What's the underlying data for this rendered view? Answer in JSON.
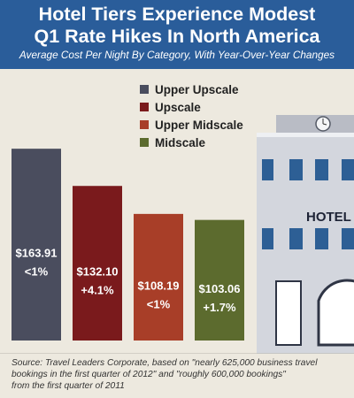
{
  "header": {
    "title_line1": "Hotel Tiers Experience Modest",
    "title_line2": "Q1 Rate Hikes In North America",
    "subtitle": "Average Cost Per Night By Category, With Year-Over-Year Changes"
  },
  "building": {
    "sign": "HOTEL"
  },
  "source": {
    "line1": "Source: Travel Leaders Corporate, based on \"nearly 625,000 business travel",
    "line2": "bookings in the first quarter of 2012\" and \"roughly 600,000 bookings\"",
    "line3": "from the first quarter of 2011"
  },
  "colors": {
    "header": "#2a5d9a",
    "background": "#ede9df"
  },
  "chart_data": {
    "type": "bar",
    "categories": [
      "Upper Upscale",
      "Upscale",
      "Upper Midscale",
      "Midscale"
    ],
    "values": [
      163.91,
      132.1,
      108.19,
      103.06
    ],
    "value_labels": [
      "$163.91",
      "$132.10",
      "$108.19",
      "$103.06"
    ],
    "change_labels": [
      "<1%",
      "+4.1%",
      "<1%",
      "+1.7%"
    ],
    "colors": [
      "#4a4d5e",
      "#7a1a1c",
      "#a83e28",
      "#5c6b2e"
    ],
    "legend_position": "top-right",
    "grid": false
  }
}
